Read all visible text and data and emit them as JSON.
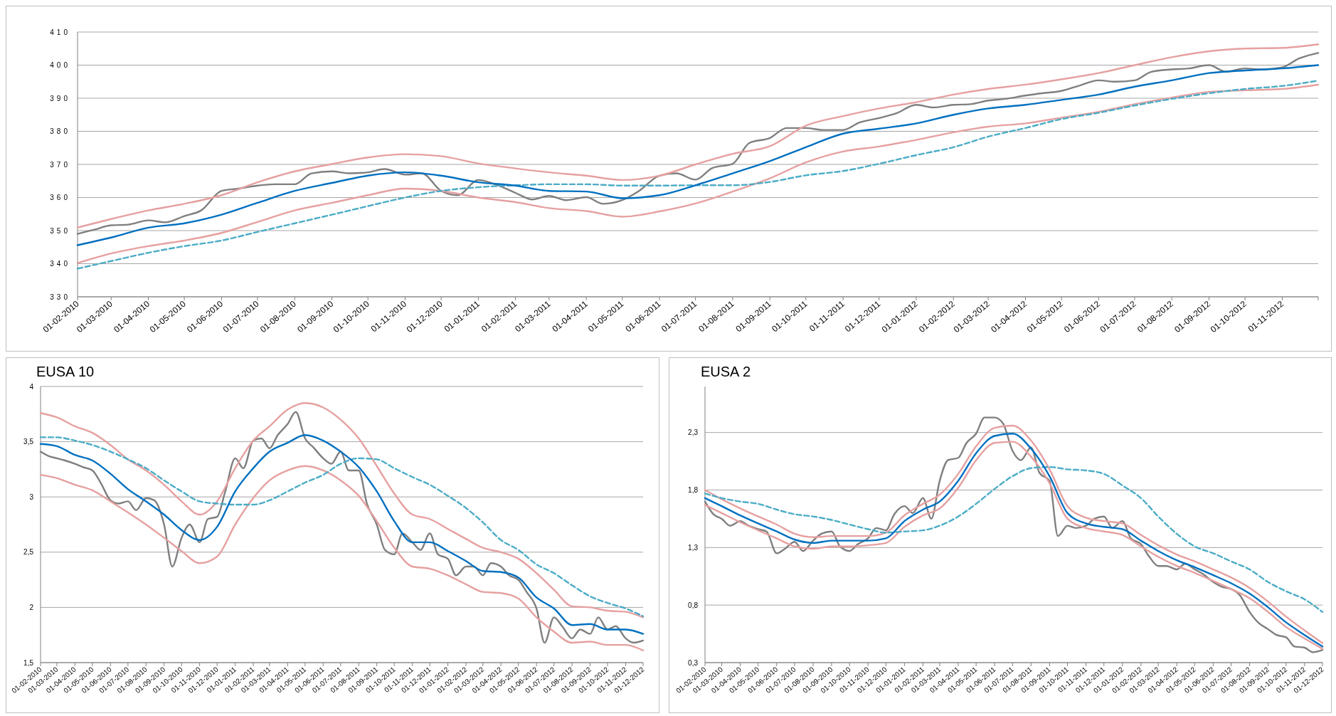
{
  "chart_data": [
    {
      "type": "line",
      "x": [
        "2010-02-01",
        "2010-03-01",
        "2010-04-01",
        "2010-05-01",
        "2010-06-01",
        "2010-07-01",
        "2010-08-01",
        "2010-09-01",
        "2010-10-01",
        "2010-11-01",
        "2010-12-01",
        "2011-01-01",
        "2011-02-01",
        "2011-03-01",
        "2011-04-01",
        "2011-05-01",
        "2011-06-01",
        "2011-07-01",
        "2011-08-01",
        "2011-09-01",
        "2011-10-01",
        "2011-11-01",
        "2011-12-01",
        "2012-01-01",
        "2012-02-01",
        "2012-03-01",
        "2012-04-01",
        "2012-05-01",
        "2012-06-01",
        "2012-07-01",
        "2012-08-01",
        "2012-09-01",
        "2012-10-01",
        "2012-11-01",
        "2012-12-01"
      ],
      "xlim": [
        "2010-02-01",
        "2012-12-01"
      ],
      "xticks": [
        {
          "value": "2010-02-01",
          "label": "01-02-2010"
        },
        {
          "value": "2010-03-01",
          "label": "01-03-2010"
        },
        {
          "value": "2010-04-01",
          "label": "01-04-2010"
        },
        {
          "value": "2010-05-01",
          "label": "01-05-2010"
        },
        {
          "value": "2010-06-01",
          "label": "01-06-2010"
        },
        {
          "value": "2010-07-01",
          "label": "01-07-2010"
        },
        {
          "value": "2010-08-01",
          "label": "01-08-2010"
        },
        {
          "value": "2010-09-01",
          "label": "01-09-2010"
        },
        {
          "value": "2010-10-01",
          "label": "01-10-2010"
        },
        {
          "value": "2010-11-01",
          "label": "01-11-2010"
        },
        {
          "value": "2010-12-01",
          "label": "01-12-2010"
        },
        {
          "value": "2011-01-01",
          "label": "01-01-2011"
        },
        {
          "value": "2011-02-01",
          "label": "01-02-2011"
        },
        {
          "value": "2011-03-01",
          "label": "01-03-2011"
        },
        {
          "value": "2011-04-01",
          "label": "01-04-2011"
        },
        {
          "value": "2011-05-01",
          "label": "01-05-2011"
        },
        {
          "value": "2011-06-01",
          "label": "01-06-2011"
        },
        {
          "value": "2011-07-01",
          "label": "01-07-2011"
        },
        {
          "value": "2011-08-01",
          "label": "01-08-2011"
        },
        {
          "value": "2011-09-01",
          "label": "01-09-2011"
        },
        {
          "value": "2011-10-01",
          "label": "01-10-2011"
        },
        {
          "value": "2011-11-01",
          "label": "01-11-2011"
        },
        {
          "value": "2011-12-01",
          "label": "01-12-2011"
        },
        {
          "value": "2012-01-01",
          "label": "01-01-2012"
        },
        {
          "value": "2012-02-01",
          "label": "01-02-2012"
        },
        {
          "value": "2012-03-01",
          "label": "01-03-2012"
        },
        {
          "value": "2012-04-01",
          "label": "01-04-2012"
        },
        {
          "value": "2012-05-01",
          "label": "01-05-2012"
        },
        {
          "value": "2012-06-01",
          "label": "01-06-2012"
        },
        {
          "value": "2012-07-01",
          "label": "01-07-2012"
        },
        {
          "value": "2012-08-01",
          "label": "01-08-2012"
        },
        {
          "value": "2012-09-01",
          "label": "01-09-2012"
        },
        {
          "value": "2012-10-01",
          "label": "01-10-2012"
        },
        {
          "value": "2012-11-01",
          "label": "01-11-2012"
        },
        {
          "value": "2012-12-01",
          "label": null
        }
      ],
      "ylim": [
        330,
        410
      ],
      "yticks": [
        330,
        340,
        350,
        360,
        370,
        380,
        390,
        400,
        410
      ],
      "grid": "y",
      "series": [
        {
          "color": "#7f7f7f",
          "x": [
            "2010-02-01",
            "2010-02-15",
            "2010-03-01",
            "2010-03-15",
            "2010-04-01",
            "2010-04-15",
            "2010-05-01",
            "2010-05-15",
            "2010-06-01",
            "2010-06-15",
            "2010-07-01",
            "2010-07-15",
            "2010-08-01",
            "2010-08-15",
            "2010-09-01",
            "2010-09-15",
            "2010-10-01",
            "2010-10-15",
            "2010-11-01",
            "2010-11-15",
            "2010-12-01",
            "2010-12-15",
            "2011-01-01",
            "2011-01-15",
            "2011-02-01",
            "2011-02-15",
            "2011-03-01",
            "2011-03-15",
            "2011-04-01",
            "2011-04-15",
            "2011-05-01",
            "2011-05-15",
            "2011-06-01",
            "2011-06-15",
            "2011-07-01",
            "2011-07-15",
            "2011-08-01",
            "2011-08-15",
            "2011-09-01",
            "2011-09-15",
            "2011-10-01",
            "2011-10-15",
            "2011-11-01",
            "2011-11-15",
            "2011-12-01",
            "2011-12-15",
            "2012-01-01",
            "2012-01-15",
            "2012-02-01",
            "2012-02-15",
            "2012-03-01",
            "2012-03-15",
            "2012-04-01",
            "2012-04-15",
            "2012-05-01",
            "2012-05-15",
            "2012-06-01",
            "2012-06-15",
            "2012-07-01",
            "2012-07-15",
            "2012-08-01",
            "2012-08-15",
            "2012-09-01",
            "2012-09-15",
            "2012-10-01",
            "2012-10-15",
            "2012-11-01",
            "2012-11-15",
            "2012-12-01"
          ],
          "values": [
            349,
            350.3,
            351.6,
            351.8,
            353.1,
            352.5,
            354.4,
            356.1,
            362,
            362.7,
            363.6,
            364,
            364,
            367.3,
            367.9,
            367.3,
            367.6,
            368.6,
            366.9,
            367.3,
            362,
            360.7,
            365.3,
            364,
            361.4,
            359.4,
            360.5,
            359.2,
            360.1,
            358.1,
            359.2,
            362,
            366.6,
            367.3,
            365.4,
            368.9,
            370.2,
            376.5,
            378,
            381,
            381,
            380.4,
            380.4,
            382.7,
            384,
            385.4,
            388,
            387.2,
            388,
            388.2,
            389.3,
            389.8,
            390.8,
            391.5,
            392.2,
            393.7,
            395.4,
            395,
            395.4,
            398,
            398.7,
            399,
            400,
            398,
            399,
            398.7,
            399.3,
            402,
            403.7
          ]
        },
        {
          "color": "#e6a0a0",
          "values": [
            350.9,
            353.5,
            356.1,
            358.1,
            360.7,
            364.6,
            367.9,
            370.1,
            372.1,
            373.1,
            372.5,
            370.3,
            368.8,
            367.6,
            366.6,
            365.3,
            366.6,
            370,
            373.2,
            375.5,
            381.7,
            384.6,
            386.9,
            388.8,
            391.1,
            392.8,
            394.1,
            395.7,
            397.6,
            400,
            402.4,
            404.2,
            405,
            405.2,
            406.3
          ]
        },
        {
          "color": "#e6a0a0",
          "values": [
            340.2,
            343.1,
            345.3,
            347,
            349.3,
            352.6,
            356.1,
            358.4,
            360.7,
            362.7,
            362,
            360,
            358.6,
            356.8,
            355.9,
            354.2,
            355.8,
            358.2,
            361.8,
            365.8,
            370.6,
            373.9,
            375.4,
            377.4,
            379.7,
            381.4,
            382.4,
            384.1,
            385.9,
            388.2,
            390.2,
            391.9,
            392.4,
            392.8,
            394.1
          ]
        },
        {
          "color": "#4bacc6",
          "line_style": "dashed",
          "values": [
            338.5,
            340.8,
            343.3,
            345.3,
            347,
            349.6,
            352.2,
            354.8,
            357.4,
            360,
            362,
            363.1,
            363.7,
            364,
            364,
            363.6,
            363.6,
            363.7,
            363.7,
            364.7,
            366.7,
            368,
            370.2,
            372.8,
            375.2,
            378.4,
            381,
            383.7,
            385.6,
            387.8,
            389.8,
            391.5,
            392.8,
            393.7,
            395.3
          ]
        },
        {
          "color": "#0070c0",
          "values": [
            345.6,
            347.9,
            350.9,
            352.2,
            354.8,
            358.4,
            362,
            364.4,
            366.6,
            367.6,
            366.6,
            364.6,
            363.6,
            362,
            361.8,
            359.8,
            360.7,
            363.7,
            367.3,
            371,
            375.2,
            379.3,
            380.8,
            382.4,
            385,
            386.9,
            388,
            389.5,
            391.1,
            393.5,
            395.4,
            397.6,
            398.4,
            399,
            400
          ]
        }
      ]
    },
    {
      "type": "line",
      "title": "EUSA 10",
      "x": [
        "2010-02-01",
        "2010-03-01",
        "2010-04-01",
        "2010-05-01",
        "2010-06-01",
        "2010-07-01",
        "2010-08-01",
        "2010-09-01",
        "2010-10-01",
        "2010-11-01",
        "2010-12-01",
        "2011-01-01",
        "2011-02-01",
        "2011-03-01",
        "2011-04-01",
        "2011-05-01",
        "2011-06-01",
        "2011-07-01",
        "2011-08-01",
        "2011-09-01",
        "2011-10-01",
        "2011-11-01",
        "2011-12-01",
        "2012-01-01",
        "2012-02-01",
        "2012-03-01",
        "2012-04-01",
        "2012-05-01",
        "2012-06-01",
        "2012-07-01",
        "2012-08-01",
        "2012-09-01",
        "2012-10-01",
        "2012-11-01",
        "2012-12-01"
      ],
      "xlim": [
        "2010-02-01",
        "2012-12-01"
      ],
      "xticks": [
        {
          "value": "2010-02-01",
          "label": "01-02-2010"
        },
        {
          "value": "2010-03-01",
          "label": "01-03-2010"
        },
        {
          "value": "2010-04-01",
          "label": "01-04-2010"
        },
        {
          "value": "2010-05-01",
          "label": "01-05-2010"
        },
        {
          "value": "2010-06-01",
          "label": "01-06-2010"
        },
        {
          "value": "2010-07-01",
          "label": "01-07-2010"
        },
        {
          "value": "2010-08-01",
          "label": "01-08-2010"
        },
        {
          "value": "2010-09-01",
          "label": "01-09-2010"
        },
        {
          "value": "2010-10-01",
          "label": "01-10-2010"
        },
        {
          "value": "2010-11-01",
          "label": "01-11-2010"
        },
        {
          "value": "2010-12-01",
          "label": "01-12-2010"
        },
        {
          "value": "2011-01-01",
          "label": "01-01-2011"
        },
        {
          "value": "2011-02-01",
          "label": "01-02-2011"
        },
        {
          "value": "2011-03-01",
          "label": "01-03-2011"
        },
        {
          "value": "2011-04-01",
          "label": "01-04-2011"
        },
        {
          "value": "2011-05-01",
          "label": "01-05-2011"
        },
        {
          "value": "2011-06-01",
          "label": "01-06-2011"
        },
        {
          "value": "2011-07-01",
          "label": "01-07-2011"
        },
        {
          "value": "2011-08-01",
          "label": "01-08-2011"
        },
        {
          "value": "2011-09-01",
          "label": "01-09-2011"
        },
        {
          "value": "2011-10-01",
          "label": "01-10-2011"
        },
        {
          "value": "2011-11-01",
          "label": "01-11-2011"
        },
        {
          "value": "2011-12-01",
          "label": "01-12-2011"
        },
        {
          "value": "2012-01-01",
          "label": "01-01-2012"
        },
        {
          "value": "2012-02-01",
          "label": "01-02-2012"
        },
        {
          "value": "2012-03-01",
          "label": "01-03-2012"
        },
        {
          "value": "2012-04-01",
          "label": "01-04-2012"
        },
        {
          "value": "2012-05-01",
          "label": "01-05-2012"
        },
        {
          "value": "2012-06-01",
          "label": "01-06-2012"
        },
        {
          "value": "2012-07-01",
          "label": "01-07-2012"
        },
        {
          "value": "2012-08-01",
          "label": "01-08-2012"
        },
        {
          "value": "2012-09-01",
          "label": "01-09-2012"
        },
        {
          "value": "2012-10-01",
          "label": "01-10-2012"
        },
        {
          "value": "2012-11-01",
          "label": "01-11-2012"
        },
        {
          "value": "2012-12-01",
          "label": "01-12-2012"
        }
      ],
      "ylim": [
        1.5,
        4
      ],
      "yticks": [
        {
          "value": 1.5,
          "label": "1,5"
        },
        2,
        {
          "value": 2.5,
          "label": "2,5"
        },
        3,
        {
          "value": 3.5,
          "label": "3,5"
        },
        4
      ],
      "grid": "y",
      "series": [
        {
          "color": "#7f7f7f",
          "x": [
            "2010-02-01",
            "2010-02-15",
            "2010-03-01",
            "2010-03-15",
            "2010-04-01",
            "2010-04-15",
            "2010-05-01",
            "2010-05-15",
            "2010-06-01",
            "2010-06-15",
            "2010-07-01",
            "2010-07-15",
            "2010-08-01",
            "2010-08-15",
            "2010-09-01",
            "2010-09-15",
            "2010-10-01",
            "2010-10-15",
            "2010-11-01",
            "2010-11-15",
            "2010-12-01",
            "2010-12-15",
            "2011-01-01",
            "2011-01-15",
            "2011-02-01",
            "2011-02-15",
            "2011-03-01",
            "2011-03-15",
            "2011-04-01",
            "2011-04-15",
            "2011-05-01",
            "2011-05-15",
            "2011-06-01",
            "2011-06-15",
            "2011-07-01",
            "2011-07-15",
            "2011-08-01",
            "2011-08-15",
            "2011-09-01",
            "2011-09-15",
            "2011-10-01",
            "2011-10-15",
            "2011-11-01",
            "2011-11-15",
            "2011-12-01",
            "2011-12-15",
            "2012-01-01",
            "2012-01-15",
            "2012-02-01",
            "2012-02-15",
            "2012-03-01",
            "2012-03-15",
            "2012-04-01",
            "2012-04-15",
            "2012-05-01",
            "2012-05-15",
            "2012-06-01",
            "2012-06-15",
            "2012-07-01",
            "2012-07-15",
            "2012-08-01",
            "2012-08-15",
            "2012-09-01",
            "2012-09-15",
            "2012-10-01",
            "2012-10-15",
            "2012-11-01",
            "2012-11-15",
            "2012-12-01"
          ],
          "values": [
            3.41,
            3.37,
            3.35,
            3.33,
            3.3,
            3.27,
            3.24,
            3.13,
            2.97,
            2.94,
            2.96,
            2.88,
            2.99,
            2.97,
            2.75,
            2.37,
            2.63,
            2.75,
            2.59,
            2.8,
            2.82,
            3.05,
            3.35,
            3.26,
            3.51,
            3.53,
            3.44,
            3.56,
            3.66,
            3.77,
            3.53,
            3.45,
            3.35,
            3.3,
            3.41,
            3.24,
            3.24,
            2.94,
            2.75,
            2.52,
            2.48,
            2.67,
            2.59,
            2.52,
            2.67,
            2.48,
            2.44,
            2.29,
            2.37,
            2.37,
            2.29,
            2.4,
            2.37,
            2.29,
            2.25,
            2.14,
            1.99,
            1.68,
            1.91,
            1.83,
            1.72,
            1.8,
            1.76,
            1.91,
            1.8,
            1.83,
            1.72,
            1.68,
            1.7
          ]
        },
        {
          "color": "#e6a0a0",
          "values": [
            3.76,
            3.72,
            3.64,
            3.58,
            3.47,
            3.34,
            3.24,
            3.11,
            2.96,
            2.84,
            2.96,
            3.26,
            3.51,
            3.64,
            3.79,
            3.85,
            3.81,
            3.7,
            3.53,
            3.28,
            3.03,
            2.84,
            2.8,
            2.71,
            2.62,
            2.54,
            2.5,
            2.44,
            2.31,
            2.16,
            2.01,
            2.0,
            1.97,
            1.96,
            1.91
          ]
        },
        {
          "color": "#e6a0a0",
          "values": [
            3.2,
            3.17,
            3.11,
            3.06,
            2.96,
            2.86,
            2.75,
            2.63,
            2.51,
            2.4,
            2.46,
            2.75,
            2.99,
            3.15,
            3.24,
            3.28,
            3.24,
            3.15,
            3.01,
            2.78,
            2.54,
            2.37,
            2.35,
            2.29,
            2.21,
            2.14,
            2.13,
            2.08,
            1.91,
            1.78,
            1.68,
            1.69,
            1.66,
            1.66,
            1.61
          ]
        },
        {
          "color": "#4bacc6",
          "line_style": "dashed",
          "values": [
            3.54,
            3.54,
            3.51,
            3.47,
            3.41,
            3.34,
            3.26,
            3.15,
            3.05,
            2.96,
            2.94,
            2.93,
            2.93,
            2.97,
            3.05,
            3.13,
            3.2,
            3.3,
            3.35,
            3.34,
            3.26,
            3.18,
            3.11,
            3.01,
            2.9,
            2.77,
            2.61,
            2.52,
            2.39,
            2.31,
            2.2,
            2.1,
            2.04,
            1.99,
            1.92
          ]
        },
        {
          "color": "#0070c0",
          "values": [
            3.48,
            3.46,
            3.38,
            3.33,
            3.21,
            3.07,
            2.96,
            2.84,
            2.7,
            2.61,
            2.73,
            3.05,
            3.26,
            3.41,
            3.49,
            3.56,
            3.51,
            3.41,
            3.27,
            3.05,
            2.78,
            2.59,
            2.59,
            2.51,
            2.42,
            2.33,
            2.32,
            2.27,
            2.09,
            1.99,
            1.84,
            1.85,
            1.8,
            1.8,
            1.76
          ]
        }
      ]
    },
    {
      "type": "line",
      "title": "EUSA 2",
      "x": [
        "2010-02-01",
        "2010-03-01",
        "2010-04-01",
        "2010-05-01",
        "2010-06-01",
        "2010-07-01",
        "2010-08-01",
        "2010-09-01",
        "2010-10-01",
        "2010-11-01",
        "2010-12-01",
        "2011-01-01",
        "2011-02-01",
        "2011-03-01",
        "2011-04-01",
        "2011-05-01",
        "2011-06-01",
        "2011-07-01",
        "2011-08-01",
        "2011-09-01",
        "2011-10-01",
        "2011-11-01",
        "2011-12-01",
        "2012-01-01",
        "2012-02-01",
        "2012-03-01",
        "2012-04-01",
        "2012-05-01",
        "2012-06-01",
        "2012-07-01",
        "2012-08-01",
        "2012-09-01",
        "2012-10-01",
        "2012-11-01",
        "2012-12-01"
      ],
      "xlim": [
        "2010-02-01",
        "2012-12-01"
      ],
      "xticks": [
        {
          "value": "2010-02-01",
          "label": "01-02-2010"
        },
        {
          "value": "2010-03-01",
          "label": "01-03-2010"
        },
        {
          "value": "2010-04-01",
          "label": "01-04-2010"
        },
        {
          "value": "2010-05-01",
          "label": "01-05-2010"
        },
        {
          "value": "2010-06-01",
          "label": "01-06-2010"
        },
        {
          "value": "2010-07-01",
          "label": "01-07-2010"
        },
        {
          "value": "2010-08-01",
          "label": "01-08-2010"
        },
        {
          "value": "2010-09-01",
          "label": "01-09-2010"
        },
        {
          "value": "2010-10-01",
          "label": "01-10-2010"
        },
        {
          "value": "2010-11-01",
          "label": "01-11-2010"
        },
        {
          "value": "2010-12-01",
          "label": "01-12-2010"
        },
        {
          "value": "2011-01-01",
          "label": "01-01-2011"
        },
        {
          "value": "2011-02-01",
          "label": "01-02-2011"
        },
        {
          "value": "2011-03-01",
          "label": "01-03-2011"
        },
        {
          "value": "2011-04-01",
          "label": "01-04-2011"
        },
        {
          "value": "2011-05-01",
          "label": "01-05-2011"
        },
        {
          "value": "2011-06-01",
          "label": "01-06-2011"
        },
        {
          "value": "2011-07-01",
          "label": "01-07-2011"
        },
        {
          "value": "2011-08-01",
          "label": "01-08-2011"
        },
        {
          "value": "2011-09-01",
          "label": "01-09-2011"
        },
        {
          "value": "2011-10-01",
          "label": "01-10-2011"
        },
        {
          "value": "2011-11-01",
          "label": "01-11-2011"
        },
        {
          "value": "2011-12-01",
          "label": "01-12-2011"
        },
        {
          "value": "2012-01-01",
          "label": "01-01-2012"
        },
        {
          "value": "2012-02-01",
          "label": "01-02-2012"
        },
        {
          "value": "2012-03-01",
          "label": "01-03-2012"
        },
        {
          "value": "2012-04-01",
          "label": "01-04-2012"
        },
        {
          "value": "2012-05-01",
          "label": "01-05-2012"
        },
        {
          "value": "2012-06-01",
          "label": "01-06-2012"
        },
        {
          "value": "2012-07-01",
          "label": "01-07-2012"
        },
        {
          "value": "2012-08-01",
          "label": "01-08-2012"
        },
        {
          "value": "2012-09-01",
          "label": "01-09-2012"
        },
        {
          "value": "2012-10-01",
          "label": "01-10-2012"
        },
        {
          "value": "2012-11-01",
          "label": "01-11-2012"
        },
        {
          "value": "2012-12-01",
          "label": "01-12-2012"
        }
      ],
      "ylim": [
        0.3,
        2.7
      ],
      "yticks": [
        {
          "value": 0.3,
          "label": "0,3"
        },
        {
          "value": 0.8,
          "label": "0,8"
        },
        {
          "value": 1.3,
          "label": "1,3"
        },
        {
          "value": 1.8,
          "label": "1,8"
        },
        {
          "value": 2.3,
          "label": "2,3"
        }
      ],
      "grid": "y",
      "series": [
        {
          "color": "#7f7f7f",
          "x": [
            "2010-02-01",
            "2010-02-15",
            "2010-03-01",
            "2010-03-15",
            "2010-04-01",
            "2010-04-15",
            "2010-05-01",
            "2010-05-15",
            "2010-06-01",
            "2010-06-15",
            "2010-07-01",
            "2010-07-15",
            "2010-08-01",
            "2010-08-15",
            "2010-09-01",
            "2010-09-15",
            "2010-10-01",
            "2010-10-15",
            "2010-11-01",
            "2010-11-15",
            "2010-12-01",
            "2010-12-15",
            "2011-01-01",
            "2011-01-15",
            "2011-02-01",
            "2011-02-15",
            "2011-03-01",
            "2011-03-15",
            "2011-04-01",
            "2011-04-15",
            "2011-05-01",
            "2011-05-15",
            "2011-06-01",
            "2011-06-15",
            "2011-07-01",
            "2011-07-15",
            "2011-08-01",
            "2011-08-15",
            "2011-09-01",
            "2011-09-15",
            "2011-10-01",
            "2011-10-15",
            "2011-11-01",
            "2011-11-15",
            "2011-12-01",
            "2011-12-15",
            "2012-01-01",
            "2012-01-15",
            "2012-02-01",
            "2012-02-15",
            "2012-03-01",
            "2012-03-15",
            "2012-04-01",
            "2012-04-15",
            "2012-05-01",
            "2012-05-15",
            "2012-06-01",
            "2012-06-15",
            "2012-07-01",
            "2012-07-15",
            "2012-08-01",
            "2012-08-15",
            "2012-09-01",
            "2012-09-15",
            "2012-10-01",
            "2012-10-15",
            "2012-11-01",
            "2012-11-15",
            "2012-12-01"
          ],
          "values": [
            1.7,
            1.59,
            1.55,
            1.49,
            1.53,
            1.49,
            1.46,
            1.44,
            1.25,
            1.29,
            1.35,
            1.27,
            1.36,
            1.42,
            1.44,
            1.31,
            1.27,
            1.33,
            1.38,
            1.47,
            1.45,
            1.59,
            1.66,
            1.6,
            1.73,
            1.55,
            1.88,
            2.06,
            2.08,
            2.21,
            2.29,
            2.43,
            2.43,
            2.38,
            2.14,
            2.06,
            2.17,
            1.95,
            1.88,
            1.4,
            1.49,
            1.47,
            1.49,
            1.55,
            1.57,
            1.47,
            1.53,
            1.38,
            1.33,
            1.22,
            1.14,
            1.14,
            1.11,
            1.16,
            1.11,
            1.07,
            1.0,
            0.96,
            0.94,
            0.89,
            0.74,
            0.65,
            0.59,
            0.54,
            0.52,
            0.44,
            0.43,
            0.39,
            0.41
          ]
        },
        {
          "color": "#e6a0a0",
          "values": [
            1.8,
            1.72,
            1.64,
            1.57,
            1.5,
            1.42,
            1.39,
            1.4,
            1.4,
            1.4,
            1.43,
            1.58,
            1.68,
            1.76,
            1.94,
            2.18,
            2.34,
            2.36,
            2.23,
            1.98,
            1.66,
            1.56,
            1.53,
            1.51,
            1.41,
            1.32,
            1.24,
            1.18,
            1.11,
            1.04,
            0.95,
            0.83,
            0.7,
            0.58,
            0.47
          ]
        },
        {
          "color": "#e6a0a0",
          "values": [
            1.67,
            1.6,
            1.52,
            1.45,
            1.38,
            1.31,
            1.29,
            1.31,
            1.31,
            1.32,
            1.34,
            1.48,
            1.58,
            1.64,
            1.82,
            2.06,
            2.21,
            2.22,
            2.09,
            1.86,
            1.55,
            1.47,
            1.44,
            1.41,
            1.31,
            1.22,
            1.14,
            1.08,
            1.01,
            0.94,
            0.86,
            0.74,
            0.61,
            0.51,
            0.42
          ]
        },
        {
          "color": "#4bacc6",
          "line_style": "dashed",
          "values": [
            1.77,
            1.73,
            1.7,
            1.68,
            1.63,
            1.59,
            1.57,
            1.54,
            1.5,
            1.46,
            1.43,
            1.44,
            1.45,
            1.49,
            1.57,
            1.68,
            1.81,
            1.92,
            1.99,
            2.0,
            1.98,
            1.97,
            1.94,
            1.84,
            1.73,
            1.57,
            1.42,
            1.31,
            1.25,
            1.18,
            1.11,
            1.0,
            0.92,
            0.85,
            0.74
          ]
        },
        {
          "color": "#0070c0",
          "values": [
            1.73,
            1.66,
            1.58,
            1.51,
            1.44,
            1.37,
            1.34,
            1.36,
            1.36,
            1.36,
            1.38,
            1.53,
            1.63,
            1.7,
            1.88,
            2.12,
            2.27,
            2.29,
            2.16,
            1.92,
            1.6,
            1.51,
            1.48,
            1.46,
            1.36,
            1.27,
            1.19,
            1.13,
            1.06,
            0.99,
            0.9,
            0.78,
            0.65,
            0.54,
            0.44
          ]
        }
      ]
    }
  ]
}
